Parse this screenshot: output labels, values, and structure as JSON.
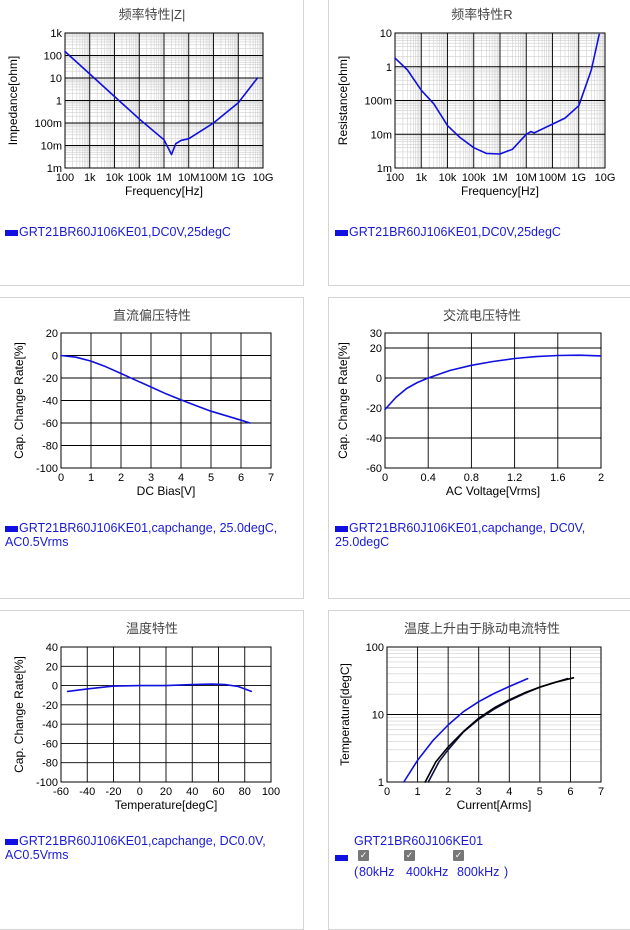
{
  "chart_data": [
    {
      "type": "line",
      "title": "频率特性|Z|",
      "xlabel": "Frequency[Hz]",
      "ylabel": "Impedance[ohm]",
      "xscale": "log",
      "yscale": "log",
      "xlim": [
        100,
        10000000000
      ],
      "ylim": [
        0.001,
        1000
      ],
      "xticks": [
        "100",
        "1k",
        "10k",
        "100k",
        "1M",
        "10M",
        "100M",
        "1G",
        "10G"
      ],
      "yticks": [
        "1k",
        "100",
        "10",
        "1",
        "100m",
        "10m",
        "1m"
      ],
      "grid": true,
      "series": [
        {
          "name": "GRT21BR60J106KE01,DC0V,25degC",
          "color": "#1010e0",
          "x": [
            100,
            1000,
            10000,
            100000,
            1000000,
            2000000,
            3000000,
            5000000,
            10000000,
            100000000,
            1000000000,
            6000000000
          ],
          "y": [
            150,
            15,
            1.5,
            0.15,
            0.018,
            0.004,
            0.012,
            0.017,
            0.02,
            0.1,
            0.8,
            10
          ]
        }
      ],
      "legend": {
        "text": "GRT21BR60J106KE01,DC0V,25degC"
      }
    },
    {
      "type": "line",
      "title": "频率特性R",
      "xlabel": "Frequency[Hz]",
      "ylabel": "Resistance[ohm]",
      "xscale": "log",
      "yscale": "log",
      "xlim": [
        100,
        10000000000
      ],
      "ylim": [
        0.001,
        10
      ],
      "xticks": [
        "100",
        "1k",
        "10k",
        "100k",
        "1M",
        "10M",
        "100M",
        "1G",
        "10G"
      ],
      "yticks": [
        "10",
        "1",
        "100m",
        "10m",
        "1m"
      ],
      "grid": true,
      "series": [
        {
          "name": "GRT21BR60J106KE01,DC0V,25degC",
          "color": "#1010e0",
          "x": [
            100,
            300,
            1000,
            3000,
            10000,
            30000,
            100000,
            300000,
            1000000,
            3000000,
            10000000,
            15000000,
            20000000,
            100000000,
            300000000,
            1000000000,
            3000000000,
            6000000000
          ],
          "y": [
            1.8,
            0.8,
            0.2,
            0.08,
            0.018,
            0.008,
            0.004,
            0.0027,
            0.0026,
            0.0036,
            0.01,
            0.012,
            0.011,
            0.02,
            0.03,
            0.07,
            0.8,
            9
          ]
        }
      ],
      "legend": {
        "text": "GRT21BR60J106KE01,DC0V,25degC"
      }
    },
    {
      "type": "line",
      "title": "直流偏压特性",
      "xlabel": "DC Bias[V]",
      "ylabel": "Cap. Change Rate[%]",
      "xlim": [
        0,
        7
      ],
      "ylim": [
        -100,
        20
      ],
      "xticks": [
        "0",
        "1",
        "2",
        "3",
        "4",
        "5",
        "6",
        "7"
      ],
      "yticks": [
        "20",
        "0",
        "-20",
        "-40",
        "-60",
        "-80",
        "-100"
      ],
      "grid": true,
      "series": [
        {
          "name": "GRT21BR60J106KE01,capchange, 25.0degC, AC0.5Vrms",
          "color": "#1010e0",
          "x": [
            0,
            0.5,
            1,
            1.5,
            2,
            2.5,
            3,
            3.5,
            4,
            4.5,
            5,
            5.5,
            6,
            6.3
          ],
          "y": [
            0,
            -1.5,
            -5,
            -10,
            -16,
            -22,
            -28,
            -34,
            -39.5,
            -44.5,
            -49.5,
            -53.5,
            -57.5,
            -60
          ]
        }
      ],
      "legend": {
        "text": "GRT21BR60J106KE01,capchange, 25.0degC, AC0.5Vrms"
      }
    },
    {
      "type": "line",
      "title": "交流电压特性",
      "xlabel": "AC Voltage[Vrms]",
      "ylabel": "Cap. Change Rate[%]",
      "xlim": [
        0,
        2
      ],
      "ylim": [
        -60,
        30
      ],
      "xticks": [
        "0",
        "0.4",
        "0.8",
        "1.2",
        "1.6",
        "2"
      ],
      "yticks": [
        "30",
        "20",
        "0",
        "-20",
        "-40",
        "-60"
      ],
      "grid": true,
      "series": [
        {
          "name": "GRT21BR60J106KE01,capchange, DC0V, 25.0degC",
          "color": "#1010e0",
          "x": [
            0,
            0.1,
            0.2,
            0.3,
            0.4,
            0.5,
            0.6,
            0.8,
            1.0,
            1.2,
            1.4,
            1.6,
            1.8,
            2.0
          ],
          "y": [
            -21,
            -13,
            -7,
            -3,
            0,
            2.5,
            5,
            8.5,
            11,
            13,
            14.3,
            15,
            15.2,
            14.7
          ]
        }
      ],
      "legend": {
        "text": "GRT21BR60J106KE01,capchange, DC0V, 25.0degC"
      }
    },
    {
      "type": "line",
      "title": "温度特性",
      "xlabel": "Temperature[degC]",
      "ylabel": "Cap. Change Rate[%]",
      "xlim": [
        -60,
        100
      ],
      "ylim": [
        -100,
        40
      ],
      "xticks": [
        "-60",
        "-40",
        "-20",
        "0",
        "20",
        "40",
        "60",
        "80",
        "100"
      ],
      "yticks": [
        "40",
        "20",
        "0",
        "-20",
        "-40",
        "-60",
        "-80",
        "-100"
      ],
      "grid": true,
      "series": [
        {
          "name": "GRT21BR60J106KE01,capchange, DC0.0V, AC0.5Vrms",
          "color": "#1010e0",
          "x": [
            -55,
            -40,
            -20,
            0,
            20,
            40,
            55,
            65,
            75,
            85
          ],
          "y": [
            -6,
            -3.5,
            -0.5,
            0,
            0,
            1,
            1.5,
            1,
            -1,
            -6
          ]
        }
      ],
      "legend": {
        "text": "GRT21BR60J106KE01,capchange, DC0.0V, AC0.5Vrms"
      }
    },
    {
      "type": "line",
      "title": "温度上升由于脉动电流特性",
      "xlabel": "Current[Arms]",
      "ylabel": "Temperature[degC]",
      "yscale": "log",
      "xlim": [
        0,
        7
      ],
      "ylim": [
        1,
        100
      ],
      "xticks": [
        "0",
        "1",
        "2",
        "3",
        "4",
        "5",
        "6",
        "7"
      ],
      "yticks": [
        "100",
        "10",
        "1"
      ],
      "grid": true,
      "series": [
        {
          "name": "80kHz",
          "color": "#1010e0",
          "x": [
            0.55,
            1,
            1.5,
            2,
            2.5,
            3,
            3.5,
            4,
            4.6
          ],
          "y": [
            1,
            2.1,
            4.1,
            7,
            11,
            15.5,
            20.5,
            26,
            34
          ]
        },
        {
          "name": "400kHz",
          "color": "#101048",
          "x": [
            1.35,
            1.7,
            2,
            2.5,
            3,
            3.5,
            4,
            4.5,
            5,
            5.9
          ],
          "y": [
            1,
            2,
            3,
            5.5,
            8.5,
            12,
            16,
            20.5,
            25.5,
            34
          ]
        },
        {
          "name": "800kHz",
          "color": "#000000",
          "x": [
            1.25,
            1.6,
            2,
            2.5,
            3,
            3.5,
            4,
            4.5,
            5,
            5.5,
            6.1
          ],
          "y": [
            1,
            2,
            3.3,
            5.6,
            8.8,
            12.5,
            16.5,
            21,
            25.5,
            30,
            35
          ]
        }
      ],
      "legend": {
        "title": "GRT21BR60J106KE01",
        "open": "(",
        "close": ")",
        "items": [
          {
            "label": "80kHz",
            "check": "✓"
          },
          {
            "label": "400kHz",
            "check": "✓"
          },
          {
            "label": "800kHz",
            "check": "✓"
          }
        ]
      }
    }
  ]
}
